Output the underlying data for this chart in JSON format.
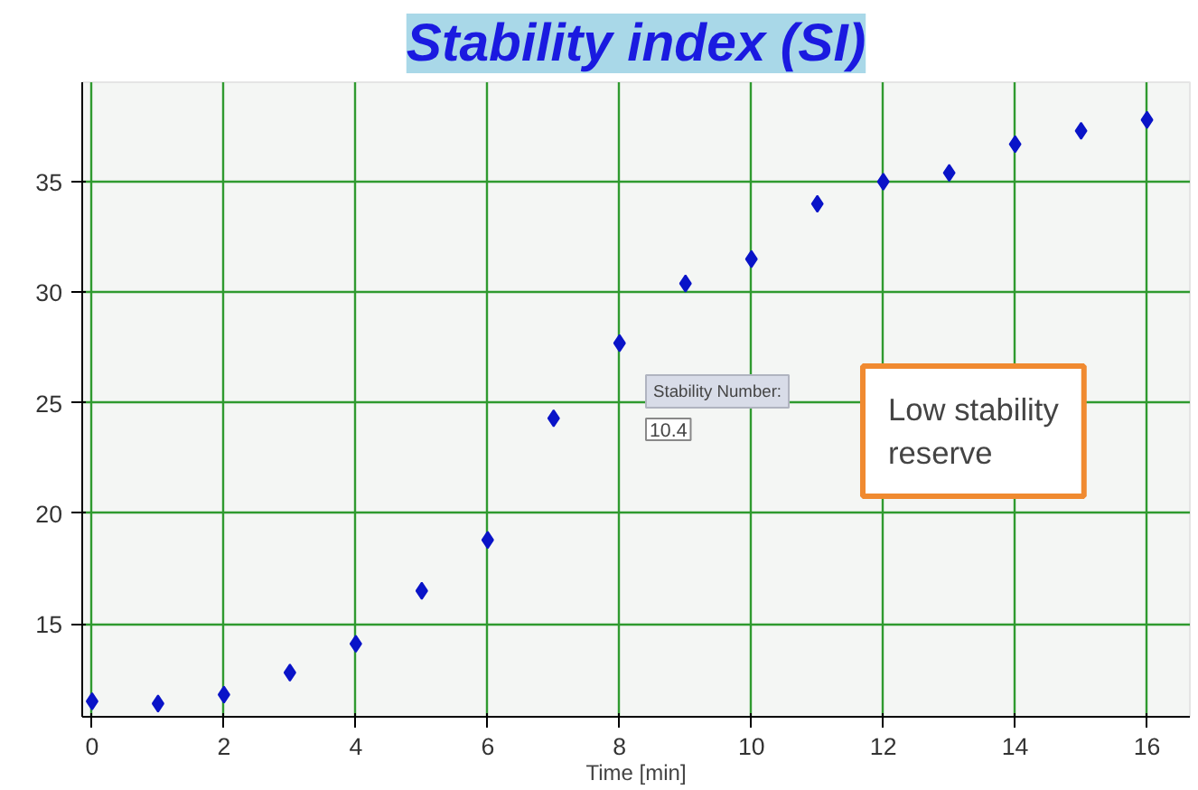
{
  "chart_data": {
    "type": "scatter",
    "title": "Stability index (SI)",
    "xlabel": "Time [min]",
    "x": [
      0,
      1,
      2,
      3,
      4,
      5,
      6,
      7,
      8,
      9,
      10,
      11,
      12,
      13,
      14,
      15,
      16
    ],
    "series": [
      {
        "color": "#0a14c8",
        "values": [
          11.5,
          11.4,
          11.8,
          12.8,
          14.1,
          16.5,
          18.8,
          24.3,
          27.7,
          30.4,
          31.5,
          34.0,
          35.0,
          35.4,
          36.7,
          37.3,
          37.8
        ]
      }
    ],
    "xlim": [
      -0.15,
      16.65
    ],
    "ylim": [
      10.8,
      39.5
    ],
    "xticks": [
      0,
      2,
      4,
      6,
      8,
      10,
      12,
      14,
      16
    ],
    "yticks": [
      15,
      20,
      25,
      30,
      35
    ],
    "grid": true,
    "marker": "diamond",
    "annotations": [
      "Stability Number:",
      "10.4",
      "Low stability reserve"
    ]
  }
}
